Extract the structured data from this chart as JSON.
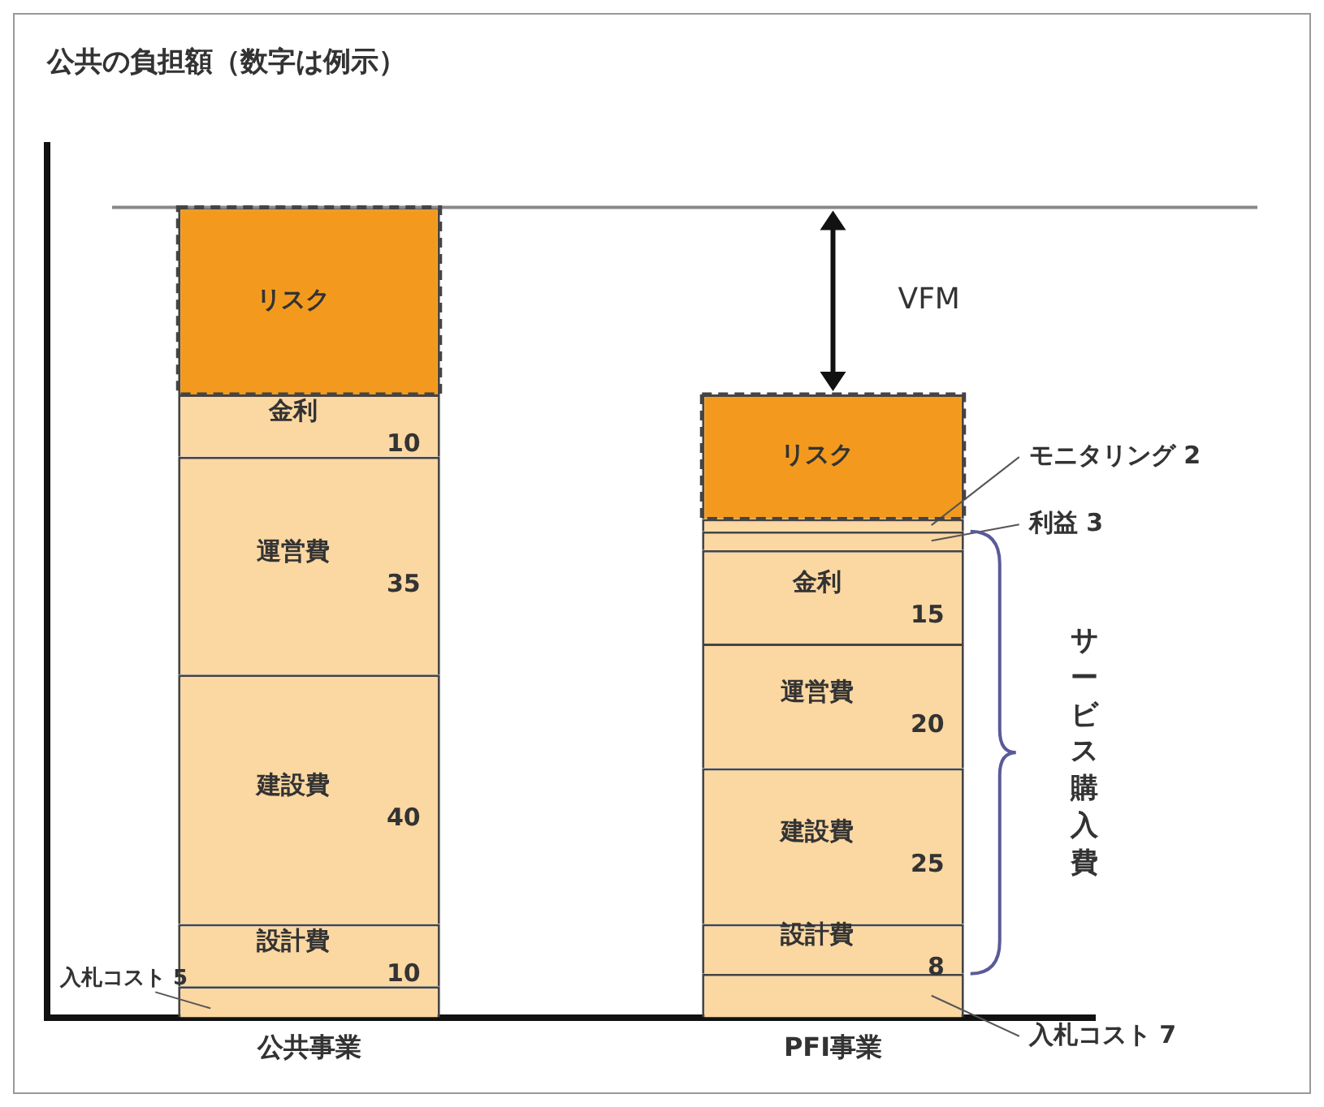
{
  "chart_data": {
    "type": "bar",
    "stacked": true,
    "title": "公共の負担額（数字は例示）",
    "categories": [
      "公共事業",
      "PFI事業"
    ],
    "series": [
      {
        "name": "入札コスト",
        "color": "#fbd7a2",
        "values": [
          5,
          7
        ],
        "value_labels": [
          "5",
          "7"
        ]
      },
      {
        "name": "設計費",
        "color": "#fbd7a2",
        "values": [
          10,
          8
        ],
        "value_labels": [
          "10",
          "8"
        ]
      },
      {
        "name": "建設費",
        "color": "#fbd7a2",
        "values": [
          40,
          25
        ],
        "value_labels": [
          "40",
          "25"
        ]
      },
      {
        "name": "運営費",
        "color": "#fbd7a2",
        "values": [
          35,
          20
        ],
        "value_labels": [
          "35",
          "20"
        ]
      },
      {
        "name": "金利",
        "color": "#fbd7a2",
        "values": [
          10,
          15
        ],
        "value_labels": [
          "10",
          "15"
        ]
      },
      {
        "name": "利益",
        "color": "#fbd7a2",
        "values": [
          null,
          3
        ],
        "value_labels": [
          null,
          "3"
        ]
      },
      {
        "name": "モニタリング",
        "color": "#fbd7a2",
        "values": [
          null,
          2
        ],
        "value_labels": [
          null,
          "2"
        ]
      },
      {
        "name": "リスク",
        "color": "#f39a1e",
        "values": [
          30,
          20
        ],
        "value_labels": [
          null,
          null
        ]
      }
    ],
    "tick_labels": "x",
    "grid": false,
    "legend": false,
    "ref_lines": [
      {
        "axis": "y",
        "value": 130,
        "color": "#888888"
      }
    ],
    "annotations": [
      "VFM",
      "サービス購入費"
    ]
  }
}
